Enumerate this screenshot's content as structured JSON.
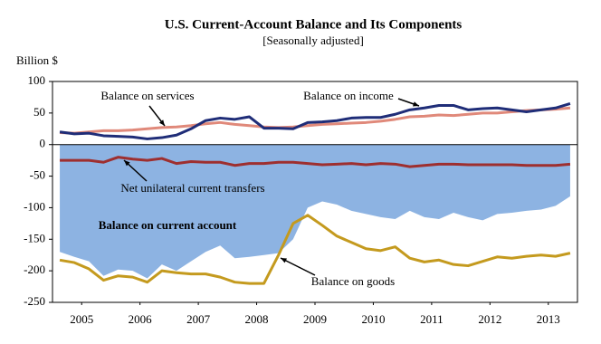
{
  "chart_data": {
    "type": "line",
    "title": "U.S. Current-Account Balance and Its Components",
    "subtitle": "[Seasonally adjusted]",
    "y_label": "Billion $",
    "xlim": [
      2005,
      2014
    ],
    "xticks": [
      {
        "value": 2005.5,
        "label": "2005"
      },
      {
        "value": 2006.5,
        "label": "2006"
      },
      {
        "value": 2007.5,
        "label": "2007"
      },
      {
        "value": 2008.5,
        "label": "2008"
      },
      {
        "value": 2009.5,
        "label": "2009"
      },
      {
        "value": 2010.5,
        "label": "2010"
      },
      {
        "value": 2011.5,
        "label": "2011"
      },
      {
        "value": 2012.5,
        "label": "2012"
      },
      {
        "value": 2013.5,
        "label": "2013"
      }
    ],
    "ylim": [
      -250,
      100
    ],
    "yticks": [
      -250,
      -200,
      -150,
      -100,
      -50,
      0,
      50,
      100
    ],
    "x": [
      2005.125,
      2005.375,
      2005.625,
      2005.875,
      2006.125,
      2006.375,
      2006.625,
      2006.875,
      2007.125,
      2007.375,
      2007.625,
      2007.875,
      2008.125,
      2008.375,
      2008.625,
      2008.875,
      2009.125,
      2009.375,
      2009.625,
      2009.875,
      2010.125,
      2010.375,
      2010.625,
      2010.875,
      2011.125,
      2011.375,
      2011.625,
      2011.875,
      2012.125,
      2012.375,
      2012.625,
      2012.875,
      2013.125,
      2013.375,
      2013.625,
      2013.875
    ],
    "series": [
      {
        "name": "Balance on current account",
        "kind": "area",
        "color": "#8db3e2",
        "values": [
          -170,
          -178,
          -185,
          -208,
          -198,
          -200,
          -212,
          -190,
          -200,
          -185,
          -170,
          -160,
          -180,
          -178,
          -175,
          -172,
          -150,
          -100,
          -90,
          -95,
          -105,
          -110,
          -115,
          -118,
          -105,
          -115,
          -118,
          -108,
          -115,
          -120,
          -110,
          -108,
          -105,
          -103,
          -97,
          -82
        ]
      },
      {
        "name": "Balance on goods",
        "kind": "line",
        "color": "#c49a1e",
        "values": [
          -183,
          -187,
          -197,
          -215,
          -208,
          -210,
          -218,
          -200,
          -203,
          -205,
          -205,
          -210,
          -218,
          -220,
          -220,
          -175,
          -125,
          -112,
          -128,
          -145,
          -155,
          -165,
          -168,
          -162,
          -180,
          -186,
          -183,
          -190,
          -192,
          -185,
          -178,
          -180,
          -177,
          -175,
          -177,
          -172
        ]
      },
      {
        "name": "Balance on services",
        "kind": "line",
        "color": "#e0897a",
        "values": [
          19,
          18,
          20,
          22,
          22,
          23,
          25,
          27,
          28,
          30,
          33,
          35,
          32,
          30,
          28,
          27,
          28,
          30,
          32,
          33,
          34,
          35,
          37,
          40,
          44,
          45,
          47,
          46,
          48,
          50,
          50,
          52,
          54,
          55,
          56,
          58
        ]
      },
      {
        "name": "Balance on income",
        "kind": "line",
        "color": "#1f2d78",
        "values": [
          20,
          17,
          18,
          14,
          13,
          12,
          9,
          11,
          15,
          25,
          38,
          42,
          40,
          44,
          26,
          26,
          25,
          35,
          36,
          38,
          42,
          43,
          43,
          48,
          55,
          58,
          62,
          62,
          55,
          57,
          58,
          55,
          52,
          55,
          58,
          65
        ]
      },
      {
        "name": "Net unilateral current transfers",
        "kind": "line",
        "color": "#9e2f2f",
        "values": [
          -25,
          -25,
          -25,
          -28,
          -20,
          -23,
          -25,
          -22,
          -30,
          -27,
          -28,
          -28,
          -33,
          -30,
          -30,
          -28,
          -28,
          -30,
          -32,
          -31,
          -30,
          -32,
          -30,
          -31,
          -35,
          -33,
          -31,
          -31,
          -32,
          -32,
          -32,
          -32,
          -33,
          -33,
          -33,
          -31
        ]
      }
    ]
  }
}
